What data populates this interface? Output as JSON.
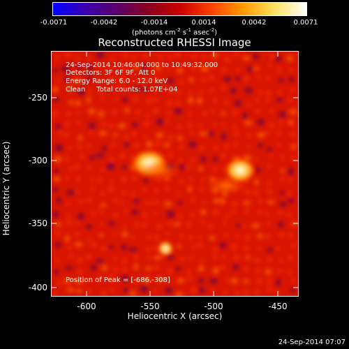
{
  "colorbar": {
    "labels": [
      "-0.0071",
      "-0.0042",
      "-0.0014",
      "0.0014",
      "0.0042",
      "0.0071"
    ],
    "units_prefix": "(photons cm",
    "units_exp1": "-2",
    "units_mid1": " s",
    "units_exp2": "-1",
    "units_mid2": " asec",
    "units_exp3": "-2",
    "units_suffix": ")",
    "colors": [
      "#0000ff",
      "#3a00b0",
      "#5a006a",
      "#8a0020",
      "#c80000",
      "#ff4000",
      "#ff9a00",
      "#ffe060",
      "#ffffff"
    ]
  },
  "title": "Reconstructed RHESSI Image",
  "info": {
    "line1": "24-Sep-2014 10:46:04.000 to 10:49:32.000",
    "line2": "Detectors: 3F 6F 9F, Att 0",
    "line3": "Energy Range: 6.0 - 12.0 keV",
    "line4": "Clean     Total counts: 1.07E+04"
  },
  "peak_label": "Position of Peak = [-686,-308]",
  "axes": {
    "xlabel": "Heliocentric X (arcsec)",
    "ylabel": "Heliocentric Y (arcsec)",
    "xticks": [
      "-600",
      "-550",
      "-500",
      "-450"
    ],
    "yticks": [
      "-250",
      "-300",
      "-350",
      "-400"
    ],
    "xlim": [
      -628,
      -433
    ],
    "ylim": [
      -408,
      -215
    ]
  },
  "timestamp": "24-Sep-2014 07:07"
}
